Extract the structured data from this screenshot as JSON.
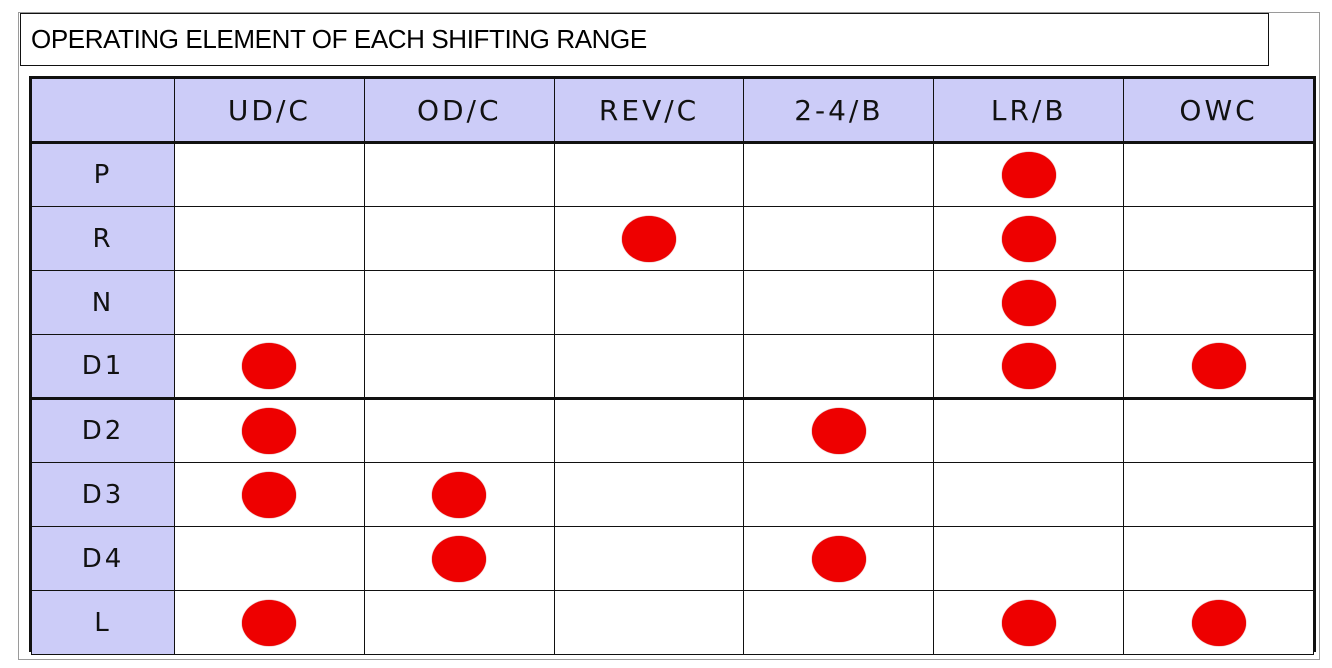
{
  "title": "OPERATING ELEMENT OF EACH SHIFTING RANGE",
  "table": {
    "corner": "",
    "columns": [
      "UD/C",
      "OD/C",
      "REV/C",
      "2-4/B",
      "LR/B",
      "OWC"
    ],
    "rows": [
      {
        "label": "P",
        "engaged": [
          false,
          false,
          false,
          false,
          true,
          false
        ]
      },
      {
        "label": "R",
        "engaged": [
          false,
          false,
          true,
          false,
          true,
          false
        ]
      },
      {
        "label": "N",
        "engaged": [
          false,
          false,
          false,
          false,
          true,
          false
        ]
      },
      {
        "label": "D1",
        "engaged": [
          true,
          false,
          false,
          false,
          true,
          true
        ]
      },
      {
        "label": "D2",
        "engaged": [
          true,
          false,
          false,
          true,
          false,
          false
        ]
      },
      {
        "label": "D3",
        "engaged": [
          true,
          true,
          false,
          false,
          false,
          false
        ]
      },
      {
        "label": "D4",
        "engaged": [
          false,
          true,
          false,
          true,
          false,
          false
        ]
      },
      {
        "label": "L",
        "engaged": [
          true,
          false,
          false,
          false,
          true,
          true
        ]
      }
    ]
  },
  "colors": {
    "header_bg": "#ccccf8",
    "dot": "#ee0000",
    "grid": "#111111"
  },
  "icons": {
    "engaged": "filled-red-circle"
  }
}
